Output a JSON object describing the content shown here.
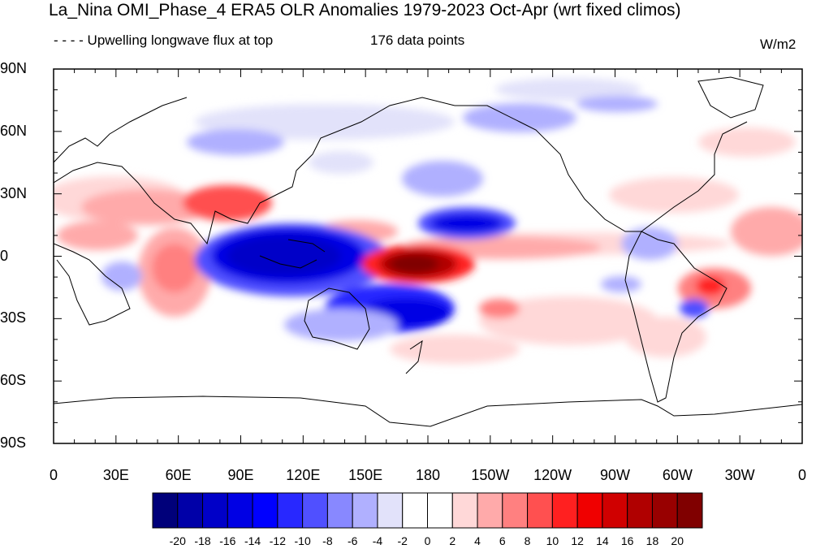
{
  "title": "La_Nina OMI_Phase_4 ERA5 OLR Anomalies 1979-2023 Oct-Apr (wrt fixed climos)",
  "subtitle_left": "- - - - Upwelling longwave flux at top",
  "subtitle_center": "176 data points",
  "units": "W/m2",
  "lat_labels": [
    "90N",
    "60N",
    "30N",
    "0",
    "30S",
    "60S",
    "90S"
  ],
  "lon_labels": [
    "0",
    "30E",
    "60E",
    "90E",
    "120E",
    "150E",
    "180",
    "150W",
    "120W",
    "90W",
    "60W",
    "30W",
    "0"
  ],
  "colorbar": {
    "labels": [
      "-20",
      "-18",
      "-16",
      "-14",
      "-12",
      "-10",
      "-8",
      "-6",
      "-4",
      "-2",
      "0",
      "2",
      "4",
      "6",
      "8",
      "10",
      "12",
      "14",
      "16",
      "18",
      "20"
    ],
    "colors": [
      "#00007a",
      "#0000a8",
      "#0000c8",
      "#0000e4",
      "#0000ff",
      "#2828ff",
      "#5050ff",
      "#8888ff",
      "#b0b0ff",
      "#e2e2fa",
      "#ffffff",
      "#ffffff",
      "#ffd8d8",
      "#ffaaaa",
      "#ff8080",
      "#ff5050",
      "#ff2020",
      "#f00000",
      "#d00000",
      "#b00000",
      "#980000",
      "#800000"
    ]
  },
  "chart_data": {
    "type": "heatmap",
    "variable": "OLR anomaly",
    "units": "W/m2",
    "lon_range": [
      0,
      360
    ],
    "lat_range": [
      -90,
      90
    ],
    "color_levels": [
      -20,
      -18,
      -16,
      -14,
      -12,
      -10,
      -8,
      -6,
      -4,
      -2,
      0,
      2,
      4,
      6,
      8,
      10,
      12,
      14,
      16,
      18,
      20
    ],
    "anomaly_regions": [
      {
        "lon": 110,
        "lat": 2,
        "lon_extent": 70,
        "lat_extent": 24,
        "value": -18
      },
      {
        "lon": 148,
        "lat": -20,
        "lon_extent": 40,
        "lat_extent": 16,
        "value": -14
      },
      {
        "lon": 200,
        "lat": 14,
        "lon_extent": 40,
        "lat_extent": 14,
        "value": -12
      },
      {
        "lon": 185,
        "lat": -4,
        "lon_extent": 44,
        "lat_extent": 16,
        "value": 20
      },
      {
        "lon": 82,
        "lat": 27,
        "lon_extent": 50,
        "lat_extent": 14,
        "value": 12
      },
      {
        "lon": 50,
        "lat": -5,
        "lon_extent": 40,
        "lat_extent": 30,
        "value": 8
      },
      {
        "lon": 315,
        "lat": -13,
        "lon_extent": 16,
        "lat_extent": 12,
        "value": 14
      },
      {
        "lon": 250,
        "lat": -28,
        "lon_extent": 70,
        "lat_extent": 18,
        "value": 6
      },
      {
        "lon": 140,
        "lat": 70,
        "lon_extent": 90,
        "lat_extent": 20,
        "value": -4
      }
    ]
  }
}
